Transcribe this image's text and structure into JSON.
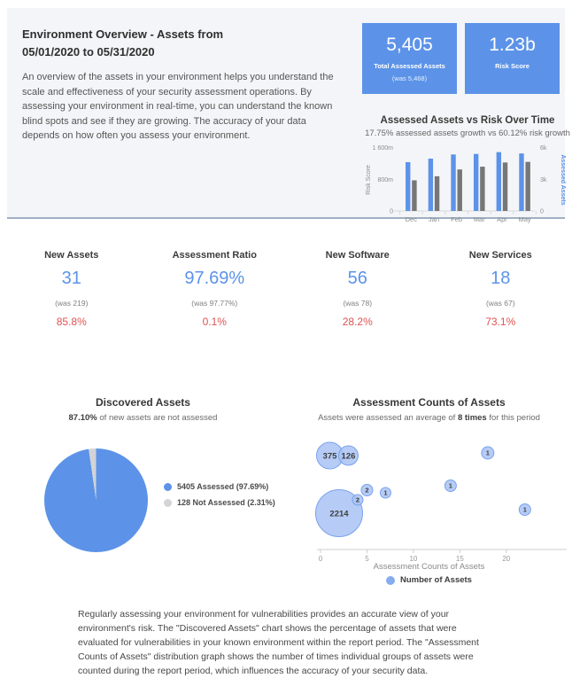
{
  "header": {
    "title_line1": "Environment Overview - Assets from",
    "title_line2": "05/01/2020 to 05/31/2020",
    "description": "An overview of the assets in your environment helps you understand the scale and effectiveness of your security assessment operations. By assessing your environment in real-time, you can understand the known blind spots and see if they are growing. The accuracy of your data depends on how often you assess your environment.",
    "kpis": [
      {
        "value": "5,405",
        "label": "Total Assessed Assets",
        "was": "(was 5,468)"
      },
      {
        "value": "1.23b",
        "label": "Risk Score",
        "was": ""
      }
    ]
  },
  "metrics": [
    {
      "title": "New Assets",
      "value": "31",
      "was": "(was 219)",
      "change": "85.8%"
    },
    {
      "title": "Assessment Ratio",
      "value": "97.69%",
      "was": "(was 97.77%)",
      "change": "0.1%"
    },
    {
      "title": "New Software",
      "value": "56",
      "was": "(was 78)",
      "change": "28.2%"
    },
    {
      "title": "New Services",
      "value": "18",
      "was": "(was 67)",
      "change": "73.1%"
    }
  ],
  "colors": {
    "accent_blue": "#5c93e8",
    "bar_gray": "#767676",
    "bubble_fill": "#a9c3f5",
    "bubble_stroke": "#7aa2ec",
    "pie_gray": "#d2d4d7",
    "negative_red": "#e05252",
    "header_bg": "#f4f5f8",
    "header_border": "#9fb0c4"
  },
  "chart_data": [
    {
      "type": "bar",
      "title": "Assessed Assets vs Risk Over Time",
      "subtitle": "17.75% assessed assets growth vs 60.12% risk growth",
      "categories": [
        "Dec",
        "Jan",
        "Feb",
        "Mar",
        "Apr",
        "May"
      ],
      "series": [
        {
          "name": "Assessed Assets",
          "axis": "right",
          "color": "#5c93e8",
          "values": [
            4590,
            4920,
            5310,
            5360,
            5530,
            5405
          ]
        },
        {
          "name": "Risk Score",
          "axis": "left",
          "color": "#767676",
          "values_millions": [
            768,
            870,
            1040,
            1110,
            1215,
            1230
          ]
        }
      ],
      "left_axis": {
        "label": "Risk Score",
        "max_millions": 1600,
        "ticks": [
          "1 600m",
          "800m",
          "0"
        ]
      },
      "right_axis": {
        "label": "Assessed Assets",
        "max": 6000,
        "ticks": [
          "6k",
          "3k",
          "0"
        ]
      },
      "grid": false,
      "legend_position": "none"
    },
    {
      "type": "pie",
      "title": "Discovered Assets",
      "subtitle_bold": "87.10%",
      "subtitle_rest": " of new assets are not assessed",
      "slices": [
        {
          "label": "5405 Assessed (97.69%)",
          "value": 5405,
          "pct": 97.69,
          "color": "#5c93e8"
        },
        {
          "label": "128 Not Assessed (2.31%)",
          "value": 128,
          "pct": 2.31,
          "color": "#d2d4d7"
        }
      ],
      "legend_position": "right"
    },
    {
      "type": "scatter",
      "title": "Assessment Counts of Assets",
      "subtitle_pre": "Assets were assessed an average of ",
      "subtitle_bold": "8 times",
      "subtitle_post": " for this period",
      "xlabel": "Assessment Counts of Assets",
      "legend_label": "Number of Assets",
      "x_ticks": [
        0,
        5,
        10,
        15,
        20
      ],
      "points": [
        {
          "x": 1,
          "count": 375,
          "py": 29,
          "r": 15
        },
        {
          "x": 3,
          "count": 126,
          "py": 29,
          "r": 11
        },
        {
          "x": 2,
          "count": 2214,
          "py": 94,
          "r": 26.5
        },
        {
          "x": 4,
          "count": 2,
          "py": 79,
          "r": 6
        },
        {
          "x": 5,
          "count": 2,
          "py": 68,
          "r": 6.5
        },
        {
          "x": 7,
          "count": 1,
          "py": 71,
          "r": 6
        },
        {
          "x": 14,
          "count": 1,
          "py": 63,
          "r": 6.5
        },
        {
          "x": 18,
          "count": 1,
          "py": 26,
          "r": 7
        },
        {
          "x": 22,
          "count": 1,
          "py": 90,
          "r": 6.5
        }
      ]
    }
  ],
  "footer": {
    "text": "Regularly assessing your environment for vulnerabilities provides an accurate view of your environment's risk. The \"Discovered Assets\" chart shows the percentage of assets that were evaluated for vulnerabilities in your known environment within the report period. The \"Assessment Counts of Assets\" distribution graph shows the number of times individual groups of assets were counted during the report period, which influences the accuracy of your security data."
  }
}
